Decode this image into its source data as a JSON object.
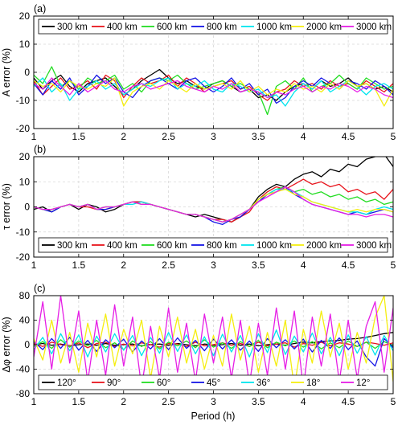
{
  "chart_data": [
    {
      "type": "line",
      "panel_label": "(a)",
      "ylabel": "A error (%)",
      "xlabel": "",
      "xlim": [
        1,
        5
      ],
      "ylim": [
        -20,
        20
      ],
      "xticks": [
        "1",
        "1.5",
        "2",
        "2.5",
        "3",
        "3.5",
        "4",
        "4.5",
        "5"
      ],
      "yticks": [
        "-20",
        "-10",
        "0",
        "10",
        "20"
      ],
      "grid": true,
      "legend_position": "top",
      "x": [
        1.0,
        1.1,
        1.2,
        1.3,
        1.4,
        1.5,
        1.6,
        1.7,
        1.8,
        1.9,
        2.0,
        2.1,
        2.2,
        2.3,
        2.4,
        2.5,
        2.6,
        2.7,
        2.8,
        2.9,
        3.0,
        3.1,
        3.2,
        3.3,
        3.4,
        3.5,
        3.6,
        3.7,
        3.8,
        3.9,
        4.0,
        4.1,
        4.2,
        4.3,
        4.4,
        4.5,
        4.6,
        4.7,
        4.8,
        4.9,
        5.0
      ],
      "series": [
        {
          "name": "300 km",
          "color": "#000000",
          "values": [
            -2,
            -6,
            -3,
            -1,
            -5,
            -7,
            -4,
            -3,
            -2,
            -5,
            -8,
            -6,
            -3,
            -1,
            1,
            -2,
            -4,
            -3,
            -5,
            -6,
            -4,
            -3,
            -5,
            -7,
            -6,
            -9,
            -8,
            -10,
            -7,
            -5,
            -4,
            -6,
            -3,
            -5,
            -4,
            -2,
            -5,
            -4,
            -6,
            -5,
            -7
          ]
        },
        {
          "name": "400 km",
          "color": "#e8141c",
          "values": [
            -3,
            -8,
            -5,
            -2,
            -6,
            -5,
            -3,
            -6,
            -1,
            -3,
            -9,
            -5,
            -2,
            -4,
            -3,
            -1,
            -5,
            -2,
            -4,
            -7,
            -5,
            -4,
            -3,
            -6,
            -5,
            -8,
            -10,
            -7,
            -6,
            -3,
            -5,
            -4,
            -6,
            -3,
            -5,
            -4,
            -6,
            -3,
            -5,
            -7,
            -4
          ]
        },
        {
          "name": "600 km",
          "color": "#22dd22",
          "values": [
            -1,
            -4,
            2,
            -5,
            -3,
            -6,
            -2,
            -4,
            -3,
            -1,
            -6,
            -4,
            -7,
            -3,
            -2,
            -3,
            -1,
            -4,
            -6,
            -5,
            -4,
            -3,
            -5,
            -4,
            -6,
            -7,
            -15,
            -5,
            -3,
            -6,
            -2,
            -7,
            -5,
            -4,
            -1,
            -4,
            -6,
            -2,
            -4,
            -6,
            -5
          ]
        },
        {
          "name": "800 km",
          "color": "#1515e6",
          "values": [
            -4,
            -8,
            -3,
            -6,
            -2,
            -8,
            -5,
            -1,
            -4,
            -2,
            -7,
            -9,
            -5,
            -3,
            -2,
            -4,
            -6,
            -3,
            -2,
            -5,
            -7,
            -5,
            -2,
            -6,
            -4,
            -8,
            -6,
            -11,
            -9,
            -5,
            -3,
            -5,
            -2,
            -4,
            -6,
            -3,
            -4,
            -6,
            -3,
            -5,
            -8
          ]
        },
        {
          "name": "1000 km",
          "color": "#00e5ee",
          "values": [
            -5,
            -2,
            -7,
            -4,
            -10,
            -6,
            -5,
            -3,
            -6,
            -4,
            -8,
            -6,
            -4,
            -5,
            -3,
            -2,
            -6,
            -4,
            -5,
            -3,
            -6,
            -7,
            -4,
            -5,
            -7,
            -6,
            -9,
            -8,
            -12,
            -7,
            -4,
            -6,
            -3,
            -7,
            -5,
            -3,
            -5,
            -8,
            -5,
            -4,
            -6
          ]
        },
        {
          "name": "2000 km",
          "color": "#f5ee10",
          "values": [
            -3,
            -5,
            -4,
            -7,
            -3,
            -5,
            -6,
            -4,
            -5,
            -2,
            -12,
            -7,
            -5,
            -4,
            -6,
            -3,
            -5,
            -7,
            -4,
            -6,
            -5,
            -4,
            -6,
            -3,
            -7,
            -5,
            -8,
            -6,
            -7,
            -4,
            -6,
            -5,
            -7,
            -4,
            -6,
            -3,
            -5,
            -4,
            -6,
            -12,
            -6
          ]
        },
        {
          "name": "3000 km",
          "color": "#e61ee6",
          "values": [
            -4,
            -6,
            -2,
            -5,
            -8,
            -4,
            -7,
            -5,
            -3,
            -6,
            -7,
            -5,
            -4,
            -6,
            -5,
            -4,
            -3,
            -5,
            -6,
            -7,
            -5,
            -6,
            -4,
            -7,
            -6,
            -7,
            -9,
            -7,
            -8,
            -6,
            -5,
            -7,
            -5,
            -6,
            -4,
            -5,
            -7,
            -5,
            -6,
            -8,
            -9
          ]
        }
      ]
    },
    {
      "type": "line",
      "panel_label": "(b)",
      "ylabel": "τ error (%)",
      "xlabel": "",
      "xlim": [
        1,
        5
      ],
      "ylim": [
        -20,
        20
      ],
      "xticks": [
        "1",
        "1.5",
        "2",
        "2.5",
        "3",
        "3.5",
        "4",
        "4.5",
        "5"
      ],
      "yticks": [
        "-20",
        "-10",
        "0",
        "10",
        "20"
      ],
      "grid": true,
      "legend_position": "bottom",
      "x": [
        1.0,
        1.1,
        1.2,
        1.3,
        1.4,
        1.5,
        1.6,
        1.7,
        1.8,
        1.9,
        2.0,
        2.1,
        2.2,
        2.3,
        2.4,
        2.5,
        2.6,
        2.7,
        2.8,
        2.9,
        3.0,
        3.1,
        3.2,
        3.3,
        3.4,
        3.5,
        3.6,
        3.7,
        3.8,
        3.9,
        4.0,
        4.1,
        4.2,
        4.3,
        4.4,
        4.5,
        4.6,
        4.7,
        4.8,
        4.9,
        5.0
      ],
      "series": [
        {
          "name": "300 km",
          "color": "#000000",
          "values": [
            -1,
            0,
            -2,
            0,
            1,
            -1,
            1,
            0,
            -2,
            -1,
            1,
            2,
            2,
            1,
            0,
            -1,
            -2,
            -3,
            -4,
            -3,
            -4,
            -5,
            -6,
            -4,
            -1,
            4,
            7,
            9,
            8,
            11,
            13,
            14,
            12,
            15,
            14,
            17,
            16,
            19,
            20,
            21,
            16
          ]
        },
        {
          "name": "400 km",
          "color": "#e8141c",
          "values": [
            0,
            -1,
            -1,
            0,
            1,
            0,
            0,
            -1,
            -1,
            0,
            1,
            2,
            2,
            1,
            0,
            -1,
            -2,
            -3,
            -3,
            -4,
            -5,
            -5,
            -6,
            -4,
            -2,
            3,
            6,
            8,
            7,
            9,
            11,
            9,
            10,
            8,
            9,
            6,
            7,
            5,
            6,
            3,
            7
          ]
        },
        {
          "name": "600 km",
          "color": "#22dd22",
          "values": [
            0,
            -1,
            -1,
            0,
            1,
            0,
            1,
            -1,
            0,
            0,
            1,
            2,
            1,
            1,
            0,
            -1,
            -2,
            -3,
            -3,
            -4,
            -5,
            -6,
            -5,
            -3,
            -1,
            3,
            5,
            7,
            8,
            6,
            7,
            5,
            6,
            4,
            5,
            3,
            4,
            2,
            3,
            1,
            2
          ]
        },
        {
          "name": "800 km",
          "color": "#1515e6",
          "values": [
            0,
            -1,
            -2,
            0,
            1,
            0,
            1,
            -1,
            -1,
            0,
            1,
            2,
            1,
            1,
            0,
            -1,
            -2,
            -3,
            -3,
            -4,
            -6,
            -7,
            -5,
            -4,
            -1,
            2,
            5,
            6,
            8,
            5,
            3,
            1,
            0,
            -1,
            -2,
            -3,
            -2,
            -3,
            -2,
            -1,
            -2
          ]
        },
        {
          "name": "1000 km",
          "color": "#00e5ee",
          "values": [
            0,
            -1,
            -1,
            0,
            1,
            0,
            1,
            -1,
            0,
            0,
            1,
            1,
            2,
            1,
            0,
            -1,
            -2,
            -3,
            -3,
            -4,
            -5,
            -6,
            -5,
            -3,
            -1,
            3,
            5,
            7,
            7,
            6,
            4,
            2,
            1,
            0,
            -1,
            -2,
            -2,
            -3,
            -1,
            0,
            -1
          ]
        },
        {
          "name": "2000 km",
          "color": "#f5ee10",
          "values": [
            0,
            -1,
            -1,
            0,
            1,
            0,
            1,
            -1,
            0,
            0,
            1,
            2,
            1,
            1,
            0,
            -1,
            -2,
            -3,
            -3,
            -4,
            -5,
            -6,
            -5,
            -3,
            -1,
            3,
            5,
            6,
            7,
            5,
            4,
            2,
            1,
            0,
            -1,
            -2,
            -1,
            -2,
            -1,
            -1,
            -2
          ]
        },
        {
          "name": "3000 km",
          "color": "#e61ee6",
          "values": [
            0,
            -1,
            -1,
            0,
            1,
            0,
            1,
            -1,
            0,
            0,
            1,
            2,
            1,
            1,
            0,
            -1,
            -2,
            -3,
            -3,
            -4,
            -5,
            -6,
            -5,
            -3,
            -1,
            2,
            4,
            6,
            8,
            6,
            3,
            1,
            0,
            -1,
            -2,
            -3,
            -3,
            -4,
            -3,
            -3,
            -4
          ]
        }
      ]
    },
    {
      "type": "line",
      "panel_label": "(c)",
      "ylabel": "Δφ error (%)",
      "xlabel": "Period (h)",
      "xlim": [
        1,
        5
      ],
      "ylim": [
        -80,
        80
      ],
      "xticks": [
        "1",
        "1.5",
        "2",
        "2.5",
        "3",
        "3.5",
        "4",
        "4.5",
        "5"
      ],
      "yticks": [
        "-80",
        "-40",
        "0",
        "40",
        "80"
      ],
      "grid": true,
      "legend_position": "bottom",
      "x": [
        1.0,
        1.1,
        1.2,
        1.3,
        1.4,
        1.5,
        1.6,
        1.7,
        1.8,
        1.9,
        2.0,
        2.1,
        2.2,
        2.3,
        2.4,
        2.5,
        2.6,
        2.7,
        2.8,
        2.9,
        3.0,
        3.1,
        3.2,
        3.3,
        3.4,
        3.5,
        3.6,
        3.7,
        3.8,
        3.9,
        4.0,
        4.1,
        4.2,
        4.3,
        4.4,
        4.5,
        4.6,
        4.7,
        4.8,
        4.9,
        5.0
      ],
      "series": [
        {
          "name": "120°",
          "color": "#000000",
          "values": [
            0,
            2,
            -1,
            1,
            -2,
            0,
            1,
            -1,
            2,
            -1,
            0,
            1,
            -2,
            0,
            1,
            -1,
            2,
            0,
            -2,
            1,
            -1,
            0,
            2,
            -1,
            1,
            -2,
            0,
            1,
            -1,
            2,
            4,
            3,
            5,
            6,
            7,
            9,
            10,
            12,
            15,
            18,
            20
          ]
        },
        {
          "name": "90°",
          "color": "#e8141c",
          "values": [
            2,
            -3,
            4,
            0,
            -2,
            3,
            -5,
            2,
            4,
            -3,
            1,
            -2,
            3,
            0,
            -4,
            2,
            1,
            -3,
            4,
            -2,
            0,
            3,
            -1,
            2,
            -3,
            4,
            -2,
            1,
            3,
            -4,
            2,
            -1,
            4,
            -2,
            3,
            1,
            -3,
            4,
            2,
            -1,
            3
          ]
        },
        {
          "name": "60°",
          "color": "#22dd22",
          "values": [
            -3,
            5,
            -6,
            8,
            -4,
            6,
            -2,
            7,
            -5,
            3,
            -8,
            6,
            -3,
            5,
            -7,
            4,
            -2,
            6,
            -5,
            8,
            -4,
            3,
            -6,
            5,
            -3,
            7,
            -5,
            4,
            -2,
            6,
            -4,
            5,
            -7,
            3,
            -5,
            6,
            -3,
            4,
            -6,
            5,
            -2
          ]
        },
        {
          "name": "45°",
          "color": "#1515e6",
          "values": [
            5,
            -8,
            10,
            -6,
            12,
            -9,
            7,
            -11,
            8,
            -5,
            9,
            -12,
            6,
            -7,
            10,
            -8,
            11,
            -6,
            7,
            -10,
            9,
            -7,
            8,
            -9,
            6,
            -11,
            10,
            -5,
            8,
            -7,
            9,
            -12,
            7,
            -6,
            11,
            -8,
            6,
            -20,
            -35,
            10,
            -5
          ]
        },
        {
          "name": "36°",
          "color": "#00e5ee",
          "values": [
            -8,
            12,
            -15,
            18,
            -10,
            16,
            -20,
            14,
            -12,
            18,
            -9,
            15,
            -18,
            12,
            -14,
            20,
            -11,
            16,
            -15,
            13,
            -18,
            17,
            -12,
            15,
            -20,
            18,
            -13,
            24,
            -16,
            14,
            -12,
            19,
            -15,
            12,
            -18,
            16,
            -14,
            13,
            -17,
            15,
            -10
          ]
        },
        {
          "name": "18°",
          "color": "#f5ee10",
          "values": [
            10,
            -25,
            40,
            -30,
            20,
            -45,
            35,
            -20,
            50,
            -35,
            25,
            -15,
            40,
            -55,
            30,
            -20,
            45,
            -30,
            25,
            -40,
            15,
            -35,
            50,
            -25,
            30,
            -45,
            20,
            -35,
            40,
            -70,
            25,
            -30,
            55,
            -20,
            35,
            -40,
            20,
            -30,
            45,
            80,
            -60
          ]
        },
        {
          "name": "12°",
          "color": "#e61ee6",
          "values": [
            -20,
            70,
            -40,
            80,
            -30,
            55,
            -60,
            40,
            -50,
            65,
            -35,
            45,
            -70,
            30,
            -55,
            60,
            -45,
            35,
            -60,
            50,
            -30,
            45,
            -55,
            40,
            -65,
            35,
            -50,
            60,
            -40,
            55,
            -70,
            45,
            -35,
            50,
            -60,
            40,
            -55,
            30,
            70,
            -45,
            60
          ]
        }
      ]
    }
  ]
}
